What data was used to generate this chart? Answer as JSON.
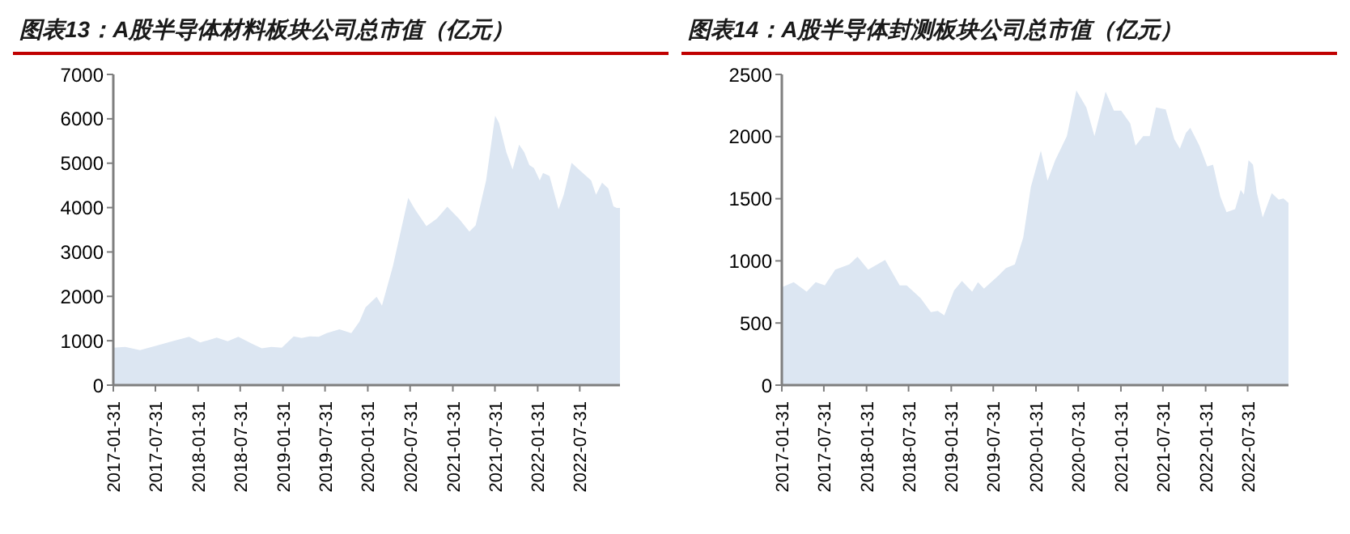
{
  "chart_data": [
    {
      "type": "area",
      "title": "图表13：A股半导体材料板块公司总市值（亿元）",
      "x": [
        "2017-01-31",
        "2017-03-23",
        "2017-05-26",
        "2017-08-04",
        "2017-10-12",
        "2017-12-23",
        "2018-02-09",
        "2018-04-21",
        "2018-06-07",
        "2018-07-23",
        "2018-09-21",
        "2018-11-01",
        "2018-12-12",
        "2019-01-26",
        "2019-03-18",
        "2019-04-21",
        "2019-05-26",
        "2019-07-04",
        "2019-08-07",
        "2019-10-01",
        "2019-11-21",
        "2019-12-26",
        "2020-01-21",
        "2020-03-09",
        "2020-04-01",
        "2020-05-18",
        "2020-07-23",
        "2020-08-21",
        "2020-10-09",
        "2020-11-23",
        "2021-01-07",
        "2021-02-26",
        "2021-04-12",
        "2021-05-09",
        "2021-06-23",
        "2021-08-01",
        "2021-08-18",
        "2021-09-18",
        "2021-10-15",
        "2021-11-12",
        "2021-12-04",
        "2021-12-26",
        "2022-01-15",
        "2022-02-09",
        "2022-02-23",
        "2022-03-23",
        "2022-05-01",
        "2022-05-23",
        "2022-06-26",
        "2022-08-04",
        "2022-09-18",
        "2022-10-09",
        "2022-11-04",
        "2022-12-01",
        "2022-12-23",
        "2023-01-06",
        "2023-01-20"
      ],
      "series": [
        {
          "color": "#dce6f2",
          "values": [
            845,
            860,
            790,
            890,
            990,
            1090,
            960,
            1070,
            990,
            1090,
            930,
            830,
            860,
            845,
            1100,
            1060,
            1100,
            1090,
            1170,
            1260,
            1170,
            1430,
            1750,
            1990,
            1790,
            2680,
            4220,
            3960,
            3580,
            3750,
            4020,
            3750,
            3460,
            3600,
            4610,
            6070,
            5900,
            5250,
            4860,
            5420,
            5250,
            4960,
            4890,
            4610,
            4780,
            4710,
            3960,
            4290,
            5010,
            4820,
            4610,
            4290,
            4560,
            4430,
            4030,
            3990,
            3990
          ]
        }
      ],
      "xlim": [
        "2017-01-31",
        "2023-01-20"
      ],
      "xticks": [
        "2017-01-31",
        "2017-07-31",
        "2018-01-31",
        "2018-07-31",
        "2019-01-31",
        "2019-07-31",
        "2020-01-31",
        "2020-07-31",
        "2021-01-31",
        "2021-07-31",
        "2022-01-31",
        "2022-07-31"
      ],
      "ylim": [
        0,
        7000
      ],
      "yticks": [
        0,
        1000,
        2000,
        3000,
        4000,
        5000,
        6000,
        7000
      ],
      "grid": false,
      "legend": false
    },
    {
      "type": "area",
      "title": "图表14：A股半导体封测板块公司总市值（亿元）",
      "x": [
        "2017-01-31",
        "2017-03-23",
        "2017-05-18",
        "2017-06-26",
        "2017-08-04",
        "2017-09-18",
        "2017-11-18",
        "2017-12-23",
        "2018-02-07",
        "2018-04-21",
        "2018-06-23",
        "2018-07-23",
        "2018-09-21",
        "2018-11-04",
        "2018-12-04",
        "2019-01-01",
        "2019-02-12",
        "2019-03-18",
        "2019-05-01",
        "2019-05-26",
        "2019-06-21",
        "2019-08-21",
        "2019-09-23",
        "2019-11-01",
        "2019-12-07",
        "2020-01-09",
        "2020-02-21",
        "2020-03-21",
        "2020-04-23",
        "2020-06-12",
        "2020-07-23",
        "2020-09-04",
        "2020-10-09",
        "2020-11-26",
        "2021-01-01",
        "2021-02-01",
        "2021-03-12",
        "2021-04-04",
        "2021-05-07",
        "2021-06-04",
        "2021-07-01",
        "2021-08-12",
        "2021-09-18",
        "2021-10-12",
        "2021-11-07",
        "2021-11-26",
        "2022-01-04",
        "2022-02-07",
        "2022-03-04",
        "2022-04-04",
        "2022-05-01",
        "2022-06-07",
        "2022-07-01",
        "2022-07-15",
        "2022-08-04",
        "2022-08-23",
        "2022-09-09",
        "2022-10-04",
        "2022-11-12",
        "2022-12-12",
        "2023-01-01",
        "2023-01-23"
      ],
      "series": [
        {
          "color": "#dce6f2",
          "values": [
            787,
            828,
            752,
            828,
            803,
            930,
            971,
            1033,
            930,
            1007,
            803,
            803,
            700,
            588,
            598,
            562,
            762,
            838,
            752,
            828,
            777,
            879,
            941,
            971,
            1186,
            1595,
            1887,
            1646,
            1810,
            2004,
            2372,
            2234,
            2004,
            2362,
            2209,
            2209,
            2106,
            1927,
            2004,
            2004,
            2234,
            2219,
            1979,
            1902,
            2030,
            2071,
            1927,
            1759,
            1774,
            1518,
            1391,
            1416,
            1570,
            1534,
            1810,
            1774,
            1544,
            1350,
            1544,
            1493,
            1503,
            1467
          ]
        }
      ],
      "xlim": [
        "2017-01-31",
        "2023-01-23"
      ],
      "xticks": [
        "2017-01-31",
        "2017-07-31",
        "2018-01-31",
        "2018-07-31",
        "2019-01-31",
        "2019-07-31",
        "2020-01-31",
        "2020-07-31",
        "2021-01-31",
        "2021-07-31",
        "2022-01-31",
        "2022-07-31"
      ],
      "ylim": [
        0,
        2500
      ],
      "yticks": [
        0,
        500,
        1000,
        1500,
        2000,
        2500
      ],
      "grid": false,
      "legend": false
    }
  ]
}
